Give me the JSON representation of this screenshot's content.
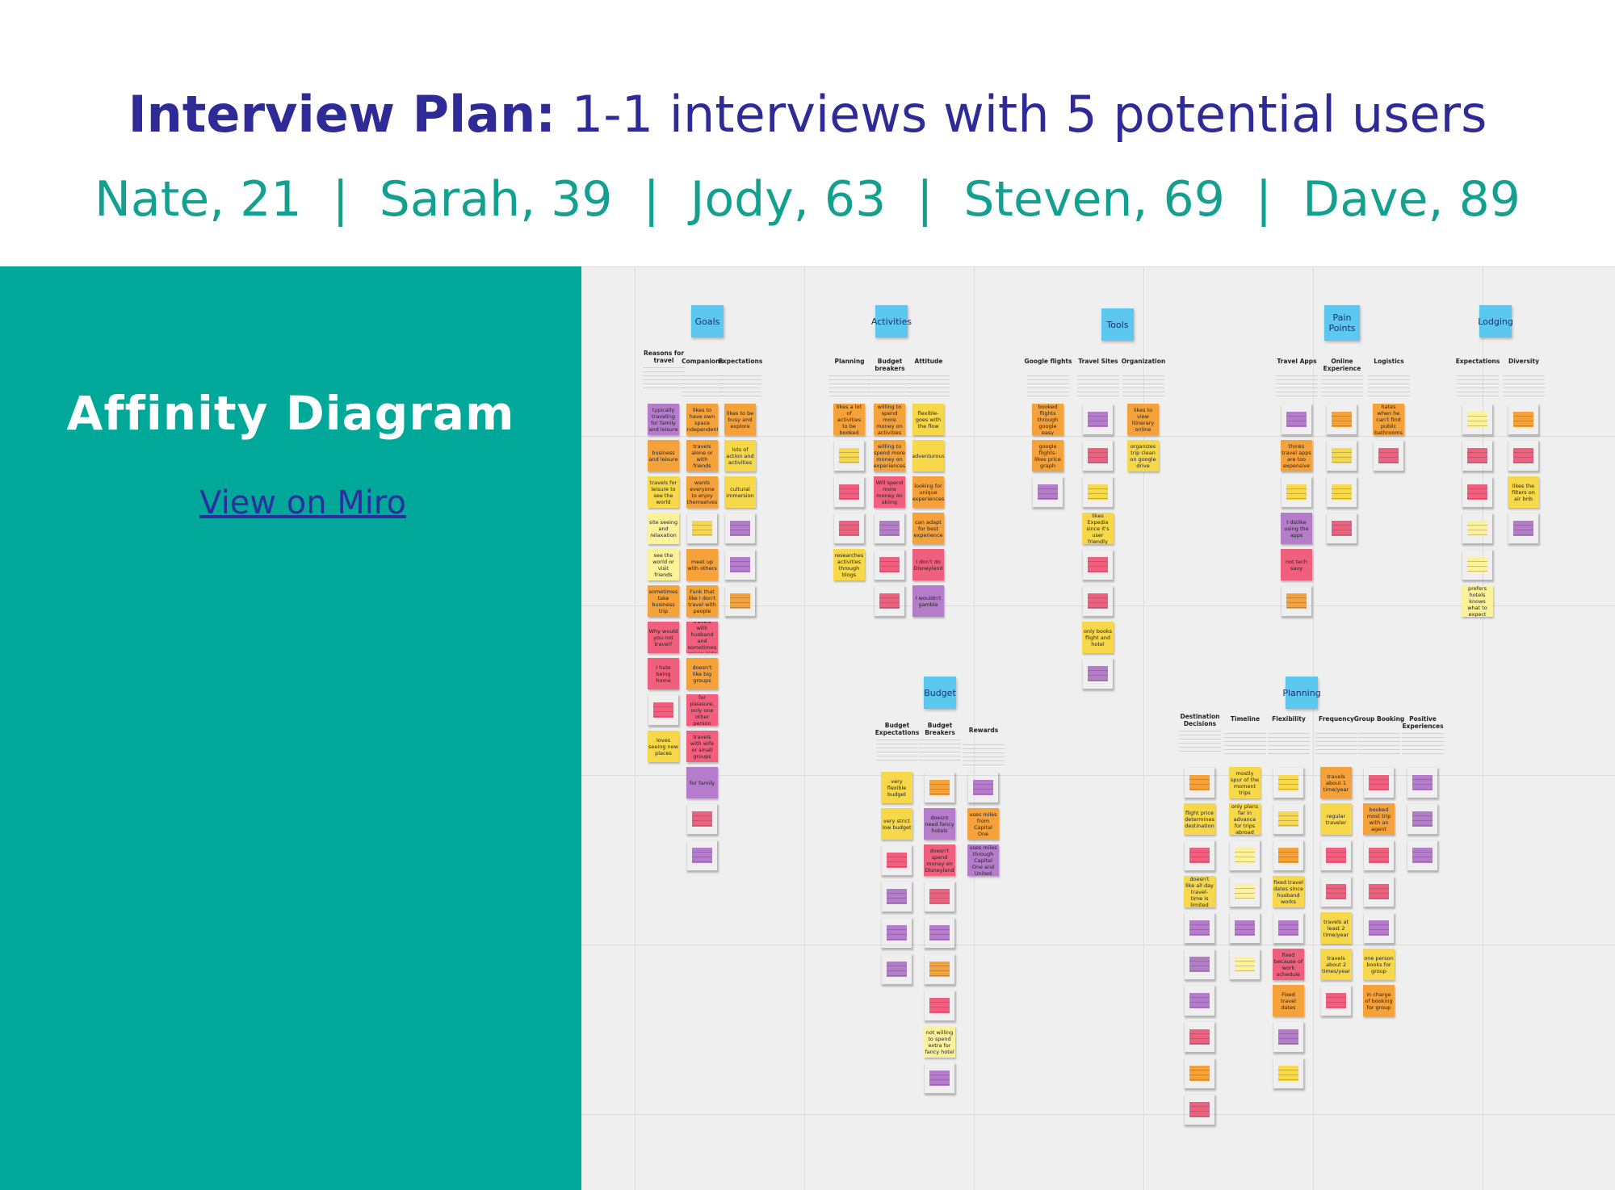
{
  "header": {
    "title_bold": "Interview Plan:",
    "title_rest": " 1-1 interviews with 5 potential users",
    "participants": [
      "Nate, 21",
      "Sarah, 39",
      "Jody, 63",
      "Steven, 69",
      "Dave, 89"
    ],
    "separator": "|"
  },
  "panel": {
    "title": "Affinity Diagram",
    "link": "View on Miro"
  },
  "colors": {
    "title_color": "#2e2a96",
    "participant_color": "#14a08f",
    "panel_bg": "#00a89a",
    "category_note": "#5cc8ef",
    "note_orange": "#f5a23a",
    "note_yellow": "#f7d84a",
    "note_lightyellow": "#fbf29a",
    "note_pink": "#f0607e",
    "note_purple": "#b57ccc"
  },
  "board": {
    "categories": [
      "Goals",
      "Activities",
      "Tools",
      "Pain Points",
      "Lodging",
      "Budget",
      "Planning"
    ],
    "groups": [
      {
        "heading": "Reasons for travel",
        "notes": [
          "typically traveling for family and leisure",
          "business and leisure",
          "travels for leisure to see the world",
          "site seeing and relaxation",
          "see the world or visit friends",
          "sometimes take business trip",
          "Why would you not travel?",
          "I hate being home",
          "",
          "loves seeing new places"
        ]
      },
      {
        "heading": "Companions",
        "notes": [
          "likes to have own space independent",
          "travels alone or with friends",
          "wants everyone to enjoy themselves",
          "",
          "meet up with others",
          "Funk that like I don't travel with people",
          "travels with husband and sometimes grown kids",
          "doesn't like big groups",
          "for pleasure, only one other person",
          "travels with wife or small groups",
          "for family",
          "",
          ""
        ]
      },
      {
        "heading": "Expectations",
        "notes": [
          "likes to be busy and explore",
          "lots of action and activities",
          "cultural immersion",
          "",
          "",
          ""
        ]
      },
      {
        "heading": "Planning",
        "notes": [
          "likes a lot of activities to be booked",
          "",
          "",
          "",
          "researches activities through blogs"
        ]
      },
      {
        "heading": "Budget breakers",
        "notes": [
          "willing to spend more money on activities",
          "willing to spend more money on experiences",
          "Will spend more money on skiing",
          "",
          "",
          ""
        ]
      },
      {
        "heading": "Attitude",
        "notes": [
          "flexible- goes with the flow",
          "adventurous",
          "looking for unique experiences",
          "can adapt for best experience",
          "I don't do Disneyland",
          "I wouldn't gamble"
        ]
      },
      {
        "heading": "Google flights",
        "notes": [
          "booked flights through google easy",
          "google flights- likes price graph",
          ""
        ]
      },
      {
        "heading": "Travel Sites",
        "notes": [
          "",
          "",
          "",
          "likes Expedia since it's user friendly",
          "",
          "",
          "only books flight and hotel",
          ""
        ]
      },
      {
        "heading": "Organization",
        "notes": [
          "likes to view itinerary online",
          "organizes trip clean on google drive"
        ]
      },
      {
        "heading": "Travel Apps",
        "notes": [
          "",
          "thinks travel apps are too expensive",
          "",
          "I dislike using the apps",
          "not tech savy",
          ""
        ]
      },
      {
        "heading": "Online Experience",
        "notes": [
          "",
          "",
          "",
          ""
        ]
      },
      {
        "heading": "Logistics",
        "notes": [
          "hates when he can't find public bathrooms",
          ""
        ]
      },
      {
        "heading": "Expectations",
        "notes": [
          "",
          "",
          "",
          "",
          "",
          "prefers hotels knows what to expect"
        ]
      },
      {
        "heading": "Diversity",
        "notes": [
          "",
          "",
          "likes the filters on air bnb",
          ""
        ]
      },
      {
        "heading": "Budget Expectations",
        "notes": [
          "very flexible budget",
          "very strict low budget",
          "",
          "",
          "",
          ""
        ]
      },
      {
        "heading": "Budget Breakers",
        "notes": [
          "",
          "doesnt need fancy hotels",
          "doesn't spend money on Disneyland",
          "",
          "",
          "",
          "",
          "not willing to spend extra for fancy hotel",
          ""
        ]
      },
      {
        "heading": "Rewards",
        "notes": [
          "",
          "uses miles from Capital One",
          "uses miles through Capital One and United"
        ]
      },
      {
        "heading": "Destination Decisions",
        "notes": [
          "",
          "flight price determines destination",
          "",
          "doesn't like all day travel- time is limited",
          "",
          "",
          "",
          "",
          "",
          ""
        ]
      },
      {
        "heading": "Timeline",
        "notes": [
          "mostly spur of the moment trips",
          "only plans far in advance for trips abroad",
          "",
          "",
          "",
          ""
        ]
      },
      {
        "heading": "Flexibility",
        "notes": [
          "",
          "",
          "",
          "fixed travel dates since husband works",
          "",
          "fixed because of work schedule",
          "Fixed travel dates",
          "",
          ""
        ]
      },
      {
        "heading": "Frequency",
        "notes": [
          "travels about 1 time/year",
          "regular traveler",
          "",
          "",
          "travels at least 2 time/year",
          "travels about 2 times/year",
          ""
        ]
      },
      {
        "heading": "Group Booking",
        "notes": [
          "",
          "booked most trip with an agent",
          "",
          "",
          "",
          "one person books for group",
          "in charge of booking for group"
        ]
      },
      {
        "heading": "Positive Experiences",
        "notes": [
          "",
          "",
          ""
        ]
      }
    ]
  }
}
